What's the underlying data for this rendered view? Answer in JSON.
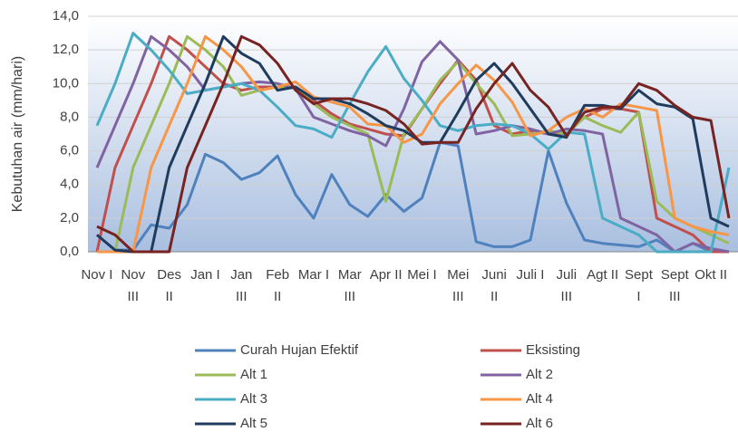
{
  "chart_data": {
    "type": "line",
    "ylabel": "Kebutuhan air (mm/hari)",
    "categories": [
      "Nov I",
      null,
      "Nov III",
      null,
      "Des II",
      null,
      "Jan I",
      null,
      "Jan III",
      null,
      "Feb II",
      null,
      "Mar I",
      null,
      "Mar III",
      null,
      "Apr II",
      null,
      "Mei I",
      null,
      "Mei III",
      null,
      "Juni II",
      null,
      "Juli I",
      null,
      "Juli III",
      null,
      "Agt II",
      null,
      "Sept I",
      null,
      "Sept III",
      null,
      "Okt II",
      null
    ],
    "ylim": [
      0,
      14
    ],
    "yticks": [
      {
        "value": 0,
        "label": "0,0"
      },
      {
        "value": 2,
        "label": "2,0"
      },
      {
        "value": 4,
        "label": "4,0"
      },
      {
        "value": 6,
        "label": "6,0"
      },
      {
        "value": 8,
        "label": "8,0"
      },
      {
        "value": 10,
        "label": "10,0"
      },
      {
        "value": 12,
        "label": "12,0"
      },
      {
        "value": 14,
        "label": "14,0"
      }
    ],
    "grid": true,
    "legend": "bottom",
    "series": [
      {
        "name": "Curah Hujan Efektif",
        "color": "#4f81bd",
        "values": [
          1.0,
          0.1,
          0.1,
          1.6,
          1.4,
          2.8,
          5.8,
          5.3,
          4.3,
          4.7,
          5.7,
          3.4,
          2.0,
          4.6,
          2.8,
          2.1,
          3.4,
          2.4,
          3.2,
          6.5,
          6.3,
          0.6,
          0.3,
          0.3,
          0.7,
          6.0,
          2.9,
          0.7,
          0.5,
          0.4,
          0.3,
          0.7,
          0.0,
          0.5,
          0.0,
          0.0
        ]
      },
      {
        "name": "Eksisting",
        "color": "#c0504d",
        "values": [
          0.0,
          5.0,
          7.5,
          10.0,
          12.8,
          12.0,
          11.0,
          10.0,
          9.6,
          9.8,
          9.8,
          9.8,
          9.0,
          8.2,
          7.6,
          7.3,
          7.0,
          6.9,
          8.5,
          10.0,
          11.4,
          10.2,
          7.5,
          7.0,
          7.2,
          7.0,
          7.0,
          8.0,
          8.5,
          8.5,
          8.3,
          2.0,
          1.5,
          1.0,
          0.0,
          0.0
        ]
      },
      {
        "name": "Alt 1",
        "color": "#9bbb59",
        "values": [
          0.0,
          0.0,
          5.0,
          7.5,
          10.0,
          12.8,
          12.0,
          11.0,
          9.3,
          9.6,
          9.8,
          9.8,
          8.8,
          8.0,
          7.5,
          7.0,
          3.0,
          7.0,
          8.5,
          10.2,
          11.3,
          10.0,
          8.8,
          6.9,
          7.0,
          7.2,
          7.0,
          8.0,
          7.5,
          7.1,
          8.3,
          3.0,
          2.0,
          1.5,
          1.0,
          0.5
        ]
      },
      {
        "name": "Alt 2",
        "color": "#8064a2",
        "values": [
          5.0,
          7.5,
          10.0,
          12.8,
          12.0,
          11.0,
          9.6,
          9.8,
          10.0,
          10.1,
          10.0,
          9.7,
          8.0,
          7.6,
          7.2,
          6.9,
          6.3,
          8.5,
          11.3,
          12.5,
          11.4,
          7.0,
          7.2,
          7.5,
          7.3,
          7.0,
          7.3,
          7.2,
          7.0,
          2.0,
          1.5,
          1.0,
          0.0,
          0.5,
          0.2,
          0.0
        ]
      },
      {
        "name": "Alt 3",
        "color": "#4bacc6",
        "values": [
          7.5,
          10.0,
          13.0,
          12.0,
          10.8,
          9.4,
          9.6,
          9.8,
          10.0,
          9.6,
          8.6,
          7.5,
          7.3,
          6.8,
          8.8,
          10.7,
          12.2,
          10.3,
          9.0,
          7.5,
          7.2,
          7.5,
          7.6,
          7.5,
          7.0,
          6.1,
          7.1,
          7.0,
          2.0,
          1.5,
          1.0,
          0.0,
          0.0,
          0.0,
          0.0,
          5.0
        ]
      },
      {
        "name": "Alt 4",
        "color": "#f79646",
        "values": [
          0.0,
          0.0,
          0.0,
          5.0,
          7.5,
          10.0,
          12.8,
          12.0,
          11.0,
          9.6,
          9.8,
          10.1,
          9.2,
          8.9,
          8.6,
          7.6,
          7.5,
          6.5,
          7.0,
          8.8,
          10.0,
          11.1,
          10.2,
          8.9,
          6.9,
          7.2,
          8.0,
          8.5,
          8.0,
          8.8,
          8.6,
          8.4,
          2.0,
          1.5,
          1.2,
          1.0
        ]
      },
      {
        "name": "Alt 5",
        "color": "#1f3b5e",
        "values": [
          1.0,
          0.1,
          0.0,
          0.0,
          5.0,
          7.5,
          10.0,
          12.8,
          11.8,
          11.2,
          9.6,
          9.8,
          9.1,
          9.1,
          8.8,
          8.2,
          7.5,
          7.2,
          6.5,
          6.5,
          8.3,
          10.2,
          11.2,
          10.0,
          8.5,
          7.0,
          6.8,
          8.7,
          8.7,
          8.5,
          9.6,
          8.8,
          8.6,
          7.9,
          2.0,
          1.5
        ]
      },
      {
        "name": "Alt 6",
        "color": "#772322",
        "values": [
          1.5,
          1.0,
          0.0,
          0.0,
          0.0,
          5.0,
          7.5,
          10.0,
          12.8,
          12.3,
          11.2,
          9.6,
          8.8,
          9.1,
          9.1,
          8.8,
          8.4,
          7.6,
          6.4,
          6.5,
          6.5,
          8.5,
          10.0,
          11.2,
          9.6,
          8.6,
          6.9,
          8.3,
          8.6,
          8.6,
          10.0,
          9.6,
          8.7,
          8.0,
          7.8,
          2.0
        ]
      }
    ]
  }
}
